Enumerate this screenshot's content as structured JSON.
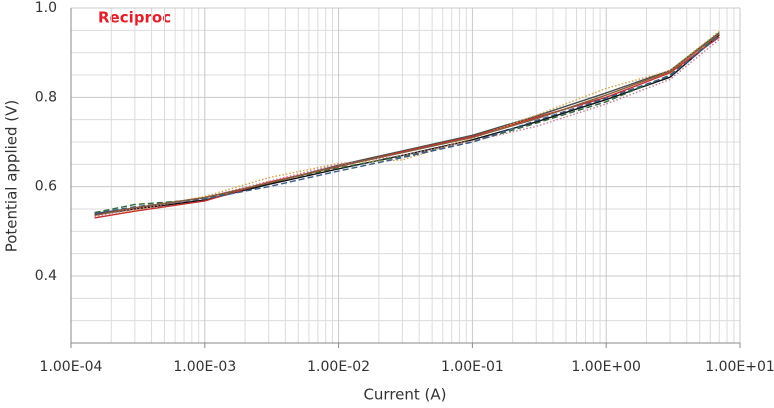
{
  "chart_data": {
    "type": "line",
    "annotation": "Reciproc",
    "annotation_color": "#e0202a",
    "x_label": "Current (A)",
    "y_label": "Potential applied (V)",
    "x_log": true,
    "grid": true,
    "xlim": [
      0.0001,
      10
    ],
    "ylim": [
      0.25,
      1.0
    ],
    "xticks": [
      {
        "value": 0.0001,
        "label": "1.00E-04"
      },
      {
        "value": 0.001,
        "label": "1.00E-03"
      },
      {
        "value": 0.01,
        "label": "1.00E-02"
      },
      {
        "value": 0.1,
        "label": "1.00E-01"
      },
      {
        "value": 1,
        "label": "1.00E+00"
      },
      {
        "value": 10,
        "label": "1.00E+01"
      }
    ],
    "yticks": [
      0.4,
      0.6,
      0.8,
      {
        "value": 1.0,
        "label": "1.0"
      }
    ],
    "x_minor_grid": [
      0.0002,
      0.0003,
      0.0004,
      0.0005,
      0.0006,
      0.0007,
      0.0008,
      0.0009,
      0.002,
      0.003,
      0.004,
      0.005,
      0.006,
      0.007,
      0.008,
      0.009,
      0.02,
      0.03,
      0.04,
      0.05,
      0.06,
      0.07,
      0.08,
      0.09,
      0.2,
      0.3,
      0.4,
      0.5,
      0.6,
      0.7,
      0.8,
      0.9,
      2,
      3,
      4,
      5,
      6,
      7,
      8,
      9
    ],
    "y_minor_grid": [
      0.3,
      0.35,
      0.45,
      0.5,
      0.55,
      0.65,
      0.7,
      0.75,
      0.85,
      0.9,
      0.95
    ],
    "x": [
      0.00015,
      0.0003,
      0.001,
      0.003,
      0.01,
      0.03,
      0.1,
      0.3,
      1,
      3,
      7
    ],
    "series": [
      {
        "color": "#4a4f4c",
        "style": "solid",
        "values": [
          0.54,
          0.552,
          0.575,
          0.607,
          0.648,
          0.68,
          0.715,
          0.758,
          0.81,
          0.86,
          0.945
        ]
      },
      {
        "color": "#111111",
        "style": "solid",
        "values": [
          0.537,
          0.55,
          0.57,
          0.605,
          0.64,
          0.67,
          0.705,
          0.745,
          0.795,
          0.845,
          0.94
        ]
      },
      {
        "color": "#2f6b3a",
        "style": "dashed",
        "values": [
          0.542,
          0.56,
          0.572,
          0.61,
          0.642,
          0.668,
          0.7,
          0.742,
          0.79,
          0.85,
          0.94
        ]
      },
      {
        "color": "#c8302c",
        "style": "solid",
        "values": [
          0.53,
          0.545,
          0.568,
          0.61,
          0.645,
          0.678,
          0.712,
          0.755,
          0.8,
          0.855,
          0.935
        ]
      },
      {
        "color": "#d9a040",
        "style": "dotted",
        "values": [
          0.535,
          0.548,
          0.578,
          0.62,
          0.652,
          0.66,
          0.708,
          0.76,
          0.82,
          0.86,
          0.948
        ]
      },
      {
        "color": "#c77c9a",
        "style": "dotted",
        "values": [
          0.533,
          0.55,
          0.575,
          0.612,
          0.65,
          0.67,
          0.702,
          0.735,
          0.785,
          0.84,
          0.93
        ]
      },
      {
        "color": "#3b5b8c",
        "style": "dashed",
        "values": [
          0.54,
          0.555,
          0.573,
          0.6,
          0.635,
          0.665,
          0.7,
          0.748,
          0.798,
          0.848,
          0.938
        ]
      },
      {
        "color": "#8a5a3a",
        "style": "solid",
        "values": [
          0.536,
          0.553,
          0.576,
          0.608,
          0.646,
          0.676,
          0.71,
          0.752,
          0.805,
          0.858,
          0.942
        ]
      }
    ]
  }
}
